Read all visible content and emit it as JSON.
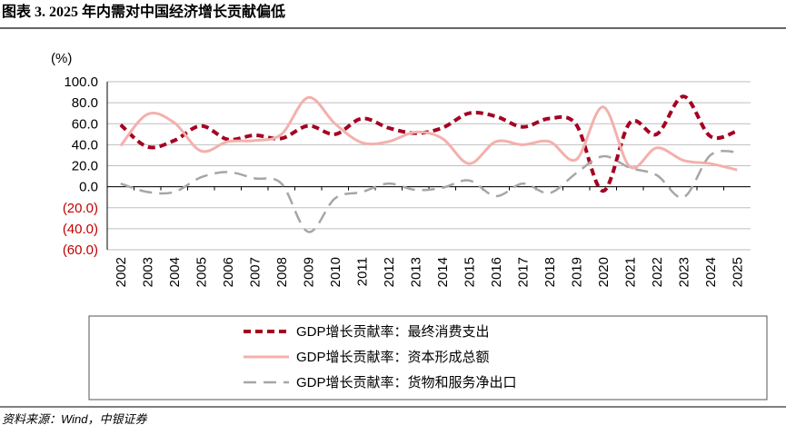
{
  "chart_data": {
    "type": "line",
    "title": "图表 3. 2025 年内需对中国经济增长贡献偏低",
    "y_unit": "(%)",
    "source": "资料来源：Wind，中银证券",
    "categories": [
      "2002",
      "2003",
      "2004",
      "2005",
      "2006",
      "2007",
      "2008",
      "2009",
      "2010",
      "2011",
      "2012",
      "2013",
      "2014",
      "2015",
      "2016",
      "2017",
      "2018",
      "2019",
      "2020",
      "2021",
      "2022",
      "2023",
      "2024",
      "2025"
    ],
    "series": [
      {
        "name": "GDP增长贡献率：最终消费支出",
        "color": "#a50021",
        "dash": "dash-heavy",
        "values": [
          59,
          38,
          44,
          58,
          45,
          49,
          46,
          58,
          50,
          65,
          56,
          51,
          56,
          70,
          67,
          57,
          65,
          59,
          -4,
          61,
          50,
          86,
          48,
          53
        ]
      },
      {
        "name": "GDP增长贡献率：资本形成总额",
        "color": "#f4b0ac",
        "dash": "solid",
        "values": [
          39,
          69,
          61,
          34,
          43,
          44,
          50,
          85,
          60,
          42,
          43,
          52,
          46,
          22,
          43,
          40,
          43,
          26,
          76,
          19,
          37,
          25,
          22,
          16
        ]
      },
      {
        "name": "GDP增长贡献率：货物和服务净出口",
        "color": "#a6a6a6",
        "dash": "dash-long",
        "values": [
          3,
          -5,
          -5,
          9,
          14,
          8,
          3,
          -43,
          -11,
          -5,
          3,
          -3,
          -1,
          6,
          -9,
          3,
          -6,
          13,
          29,
          18,
          11,
          -10,
          30,
          33
        ]
      }
    ],
    "ylim": [
      -60,
      100
    ],
    "yticks": [
      {
        "value": 100,
        "label": "100.0"
      },
      {
        "value": 80,
        "label": "80.0"
      },
      {
        "value": 60,
        "label": "60.0"
      },
      {
        "value": 40,
        "label": "40.0"
      },
      {
        "value": 20,
        "label": "20.0"
      },
      {
        "value": 0,
        "label": "0.0"
      },
      {
        "value": -20,
        "label": "(20.0)"
      },
      {
        "value": -40,
        "label": "(40.0)"
      },
      {
        "value": -60,
        "label": "(60.0)"
      }
    ],
    "negative_tick_color": "#c00000",
    "grid": true
  }
}
